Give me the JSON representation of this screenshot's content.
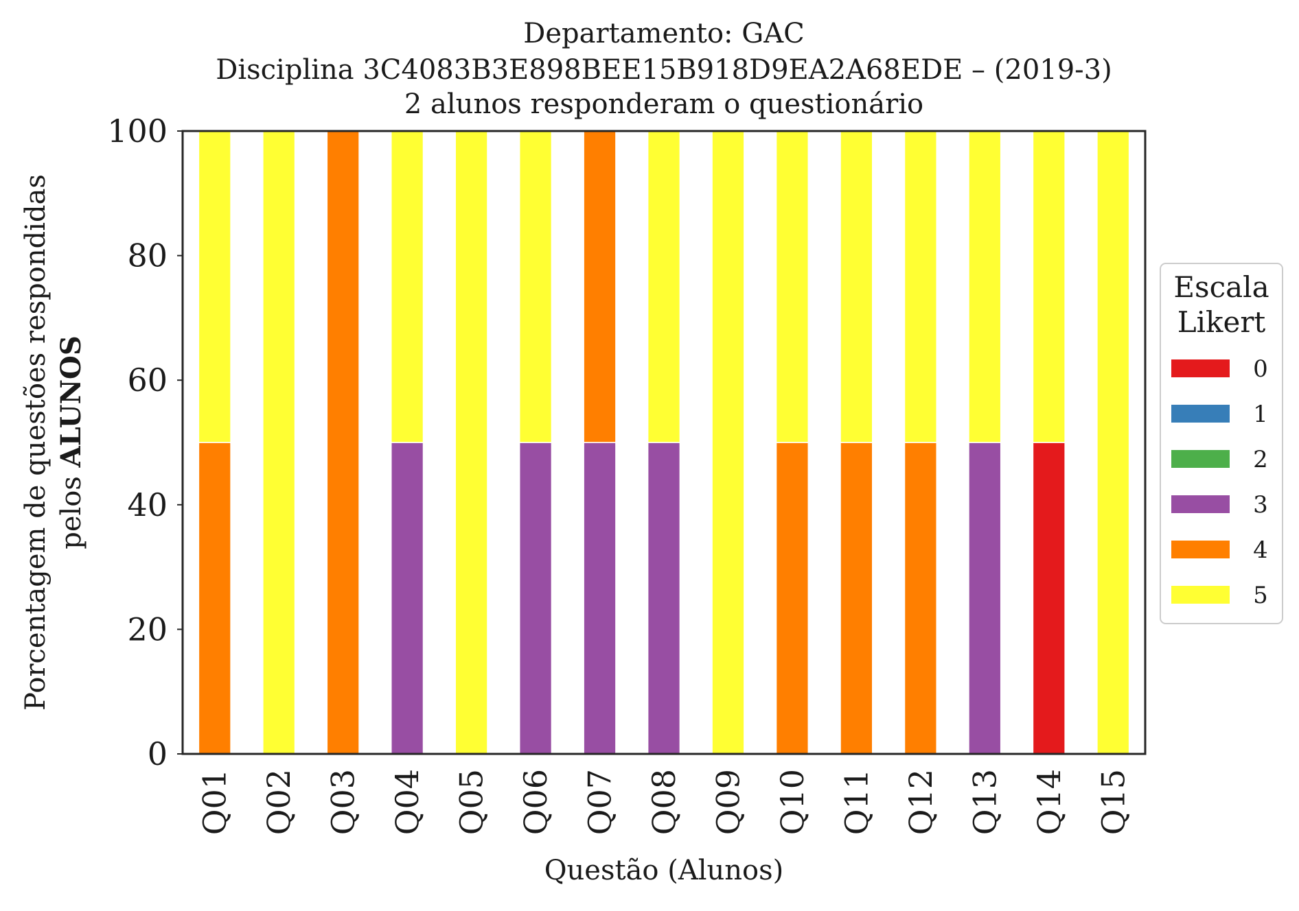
{
  "chart_data": {
    "type": "bar",
    "stacked": true,
    "title_lines": [
      "Departamento: GAC",
      "Disciplina 3C4083B3E898BEE15B918D9EA2A68EDE – (2019-3)",
      "2 alunos responderam o questionário"
    ],
    "xlabel": "Questão (Alunos)",
    "ylabel_line1": "Porcentagem de questões respondidas",
    "ylabel_line2_prefix": "pelos ",
    "ylabel_line2_bold": "ALUNOS",
    "ylim": [
      0,
      100
    ],
    "yticks": [
      "0",
      "20",
      "40",
      "60",
      "80",
      "100"
    ],
    "grid": false,
    "legend_placement": "right",
    "legend_title_lines": [
      "Escala",
      "Likert"
    ],
    "categories": [
      "Q01",
      "Q02",
      "Q03",
      "Q04",
      "Q05",
      "Q06",
      "Q07",
      "Q08",
      "Q09",
      "Q10",
      "Q11",
      "Q12",
      "Q13",
      "Q14",
      "Q15"
    ],
    "series": [
      {
        "name": "0",
        "color": "#e41a1c",
        "values": [
          0,
          0,
          0,
          0,
          0,
          0,
          0,
          0,
          0,
          0,
          0,
          0,
          0,
          50,
          0
        ]
      },
      {
        "name": "1",
        "color": "#377eb8",
        "values": [
          0,
          0,
          0,
          0,
          0,
          0,
          0,
          0,
          0,
          0,
          0,
          0,
          0,
          0,
          0
        ]
      },
      {
        "name": "2",
        "color": "#4daf4a",
        "values": [
          0,
          0,
          0,
          0,
          0,
          0,
          0,
          0,
          0,
          0,
          0,
          0,
          0,
          0,
          0
        ]
      },
      {
        "name": "3",
        "color": "#984ea3",
        "values": [
          0,
          0,
          0,
          50,
          0,
          50,
          50,
          50,
          0,
          0,
          0,
          0,
          50,
          0,
          0
        ]
      },
      {
        "name": "4",
        "color": "#ff7f00",
        "values": [
          50,
          0,
          100,
          0,
          0,
          0,
          50,
          0,
          0,
          50,
          50,
          50,
          0,
          0,
          0
        ]
      },
      {
        "name": "5",
        "color": "#ffff33",
        "values": [
          50,
          100,
          0,
          50,
          100,
          50,
          0,
          50,
          100,
          50,
          50,
          50,
          50,
          50,
          100
        ]
      }
    ]
  }
}
